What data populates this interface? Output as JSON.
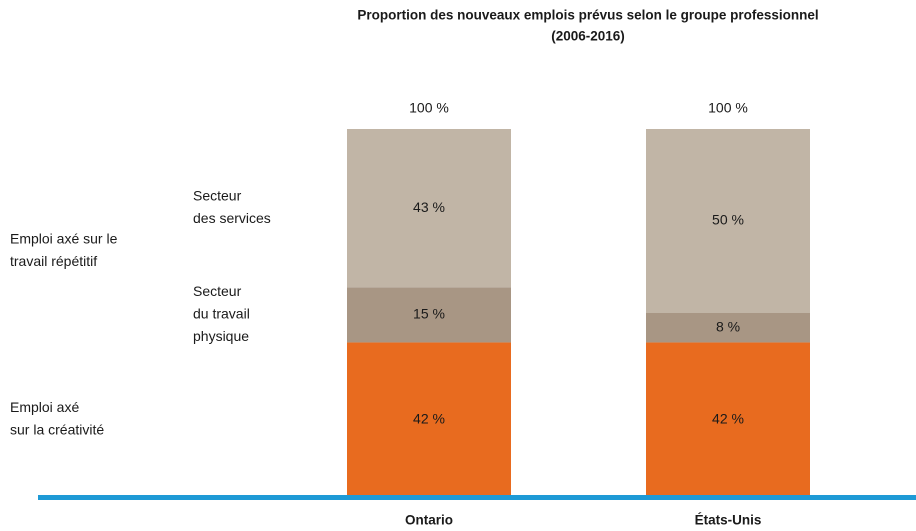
{
  "chart_data": {
    "type": "stacked_bar",
    "title": [
      "Proportion des nouveaux emplois prévus selon le groupe professionnel",
      "(2006-2016)"
    ],
    "categories": [
      "Ontario",
      "États-Unis"
    ],
    "ylim": [
      0,
      100
    ],
    "series": [
      {
        "name": [
          "Emploi axé",
          "sur la créativité"
        ],
        "color": "#e86b1f",
        "values": [
          42,
          42
        ],
        "value_labels": [
          "42 %",
          "42 %"
        ]
      },
      {
        "name": [
          "Secteur",
          "du travail",
          "physique"
        ],
        "color": "#a89684",
        "values": [
          15,
          8
        ],
        "value_labels": [
          "15 %",
          "8 %"
        ]
      },
      {
        "name": [
          "Secteur",
          "des services"
        ],
        "color": "#c1b5a6",
        "values": [
          43,
          50
        ],
        "value_labels": [
          "43 %",
          "50 %"
        ]
      }
    ],
    "totals": {
      "values": [
        100,
        100
      ],
      "value_labels": [
        "100 %",
        "100 %"
      ]
    },
    "annotations": [
      {
        "lines": [
          "Emploi axé sur le",
          "travail répétitif"
        ]
      }
    ],
    "baseline_color": "#1e9ad6"
  }
}
